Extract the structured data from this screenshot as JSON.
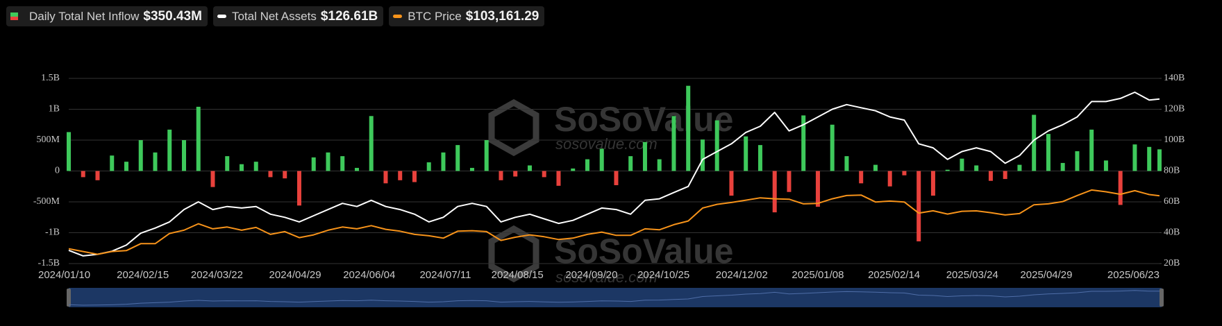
{
  "chart_data": {
    "type": "bar-line",
    "x": [
      "2024/01/10",
      "2024/01/17",
      "2024/01/24",
      "2024/01/31",
      "2024/02/07",
      "2024/02/14",
      "2024/02/21",
      "2024/02/28",
      "2024/03/06",
      "2024/03/13",
      "2024/03/20",
      "2024/03/27",
      "2024/04/03",
      "2024/04/10",
      "2024/04/17",
      "2024/04/24",
      "2024/05/01",
      "2024/05/08",
      "2024/05/15",
      "2024/05/22",
      "2024/05/29",
      "2024/06/05",
      "2024/06/12",
      "2024/06/19",
      "2024/06/26",
      "2024/07/03",
      "2024/07/10",
      "2024/07/17",
      "2024/07/24",
      "2024/07/31",
      "2024/08/07",
      "2024/08/14",
      "2024/08/21",
      "2024/08/28",
      "2024/09/04",
      "2024/09/11",
      "2024/09/18",
      "2024/09/25",
      "2024/10/02",
      "2024/10/09",
      "2024/10/16",
      "2024/10/23",
      "2024/10/30",
      "2024/11/06",
      "2024/11/13",
      "2024/11/20",
      "2024/11/27",
      "2024/12/04",
      "2024/12/11",
      "2024/12/18",
      "2024/12/25",
      "2025/01/01",
      "2025/01/08",
      "2025/01/15",
      "2025/01/22",
      "2025/01/29",
      "2025/02/05",
      "2025/02/12",
      "2025/02/19",
      "2025/02/26",
      "2025/03/05",
      "2025/03/12",
      "2025/03/19",
      "2025/03/26",
      "2025/04/02",
      "2025/04/09",
      "2025/04/16",
      "2025/04/23",
      "2025/04/30",
      "2025/05/07",
      "2025/05/14",
      "2025/05/21",
      "2025/05/28",
      "2025/06/04",
      "2025/06/11",
      "2025/06/18",
      "2025/06/23"
    ],
    "xlim": [
      "2024/01/10",
      "2025/06/23"
    ],
    "xticks": [
      "2024/01/10",
      "2024/02/15",
      "2024/03/22",
      "2024/04/29",
      "2024/06/04",
      "2024/07/11",
      "2024/08/15",
      "2024/09/20",
      "2024/10/25",
      "2024/12/02",
      "2025/01/08",
      "2025/02/14",
      "2025/03/24",
      "2025/04/29",
      "2025/06/23"
    ],
    "ylim": [
      -1.5,
      1.5
    ],
    "yticks": [
      {
        "value": -1.5,
        "label": "-1.5B"
      },
      {
        "value": -1,
        "label": "-1B"
      },
      {
        "value": -0.5,
        "label": "-500M"
      },
      0,
      {
        "value": 0.5,
        "label": "500M"
      },
      {
        "value": 1,
        "label": "1B"
      },
      {
        "value": 1.5,
        "label": "1.5B"
      }
    ],
    "y2lim": [
      20,
      140
    ],
    "y2ticks": [
      {
        "value": 20,
        "label": "20B"
      },
      {
        "value": 40,
        "label": "40B"
      },
      {
        "value": 60,
        "label": "60B"
      },
      {
        "value": 80,
        "label": "80B"
      },
      {
        "value": 100,
        "label": "100B"
      },
      {
        "value": 120,
        "label": "120B"
      },
      {
        "value": 140,
        "label": "140B"
      }
    ],
    "y3lim": [
      30000,
      230000
    ],
    "grid": true,
    "watermark": [
      "SoSoValue",
      "sosovalue.com"
    ],
    "series": [
      {
        "name": "Daily Total Net Inflow",
        "legend_value": "$350.43M",
        "type": "bar",
        "color": "#3ec95b",
        "negative_color": "#e8413c",
        "values": [
          0.63,
          -0.1,
          -0.15,
          0.25,
          0.15,
          0.5,
          0.3,
          0.67,
          0.5,
          1.04,
          -0.26,
          0.24,
          0.11,
          0.15,
          -0.1,
          -0.12,
          -0.56,
          0.22,
          0.3,
          0.24,
          0.05,
          0.89,
          -0.2,
          -0.15,
          -0.18,
          0.14,
          0.3,
          0.42,
          0.05,
          0.5,
          -0.15,
          -0.09,
          0.09,
          -0.1,
          -0.24,
          0.04,
          0.19,
          0.36,
          -0.23,
          0.24,
          0.47,
          0.19,
          0.89,
          1.38,
          0.51,
          0.82,
          -0.4,
          0.56,
          0.42,
          -0.67,
          -0.34,
          0.9,
          -0.58,
          0.75,
          0.24,
          -0.2,
          0.1,
          -0.25,
          -0.07,
          -1.14,
          -0.4,
          0.02,
          0.2,
          0.09,
          -0.16,
          -0.13,
          0.1,
          0.91,
          0.6,
          0.13,
          0.32,
          0.67,
          0.17,
          -0.55,
          0.43,
          0.39,
          0.35043
        ]
      },
      {
        "name": "Total Net Assets",
        "legend_value": "$126.61B",
        "type": "line",
        "axis": "y2",
        "color": "#ffffff",
        "values": [
          28.6,
          25,
          26,
          28,
          32,
          39.7,
          43,
          47,
          55,
          60,
          55,
          57,
          56,
          57,
          52,
          50,
          47,
          51,
          55,
          59,
          57,
          61,
          57,
          55,
          52,
          47,
          50,
          57,
          59,
          57,
          47,
          50,
          52,
          49,
          46,
          48,
          52,
          56,
          55,
          52,
          61,
          62,
          66,
          70,
          87.5,
          92.6,
          97.6,
          105,
          109,
          118,
          106,
          110,
          115,
          120,
          123,
          121,
          119,
          115,
          113,
          97.6,
          95,
          87.5,
          92.6,
          95,
          92.6,
          85,
          90,
          100,
          106,
          110,
          115,
          125,
          125,
          127,
          131,
          126,
          126.61
        ]
      },
      {
        "name": "BTC Price",
        "legend_value": "$103,161.29",
        "type": "line",
        "axis": "y3",
        "color": "#f7931a",
        "values": [
          46000,
          43000,
          40000,
          43000,
          44000,
          51500,
          51500,
          62500,
          66000,
          73000,
          67500,
          69500,
          66000,
          69000,
          61500,
          64500,
          58000,
          61000,
          66000,
          69500,
          67500,
          71000,
          67000,
          65000,
          61500,
          60000,
          57500,
          65000,
          65500,
          64500,
          55000,
          58500,
          61000,
          59000,
          56000,
          57500,
          61500,
          64000,
          60500,
          60500,
          67500,
          66500,
          72000,
          76000,
          90000,
          94000,
          96000,
          98500,
          101000,
          100000,
          99500,
          94500,
          95000,
          100000,
          103500,
          104000,
          96500,
          97500,
          96500,
          84500,
          87000,
          83500,
          86500,
          86900,
          85000,
          82500,
          84000,
          93500,
          94500,
          97000,
          103500,
          109500,
          107500,
          104800,
          108700,
          104500,
          103161.29
        ]
      }
    ]
  }
}
